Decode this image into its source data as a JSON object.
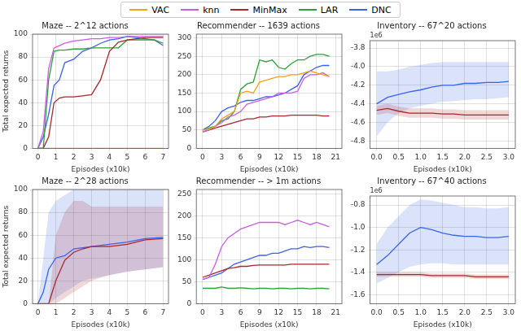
{
  "chart_data": [
    {
      "type": "line",
      "title": "Maze -- 2^12 actions",
      "xlabel": "Episodes (x10k)",
      "ylabel": "Total expected returns",
      "x": [
        0,
        0.3,
        0.6,
        0.9,
        1.2,
        1.5,
        2,
        2.5,
        3,
        3.5,
        4,
        4.5,
        5,
        5.5,
        6,
        6.5,
        7
      ],
      "xlim": [
        -0.3,
        7.3
      ],
      "xticks": [
        0,
        1,
        2,
        3,
        4,
        5,
        6,
        7
      ],
      "ylim": [
        0,
        100
      ],
      "yticks": [
        0,
        20,
        40,
        60,
        80,
        100
      ],
      "grid": true,
      "legend": "top",
      "series": [
        {
          "name": "VAC",
          "color": "#f5a01a",
          "values": [
            0,
            0,
            0,
            0,
            0,
            0,
            0,
            0,
            0,
            0,
            0,
            0,
            0,
            0,
            0,
            0,
            0
          ]
        },
        {
          "name": "knn",
          "color": "#c65ee0",
          "values": [
            0,
            15,
            70,
            88,
            90,
            92,
            94,
            95,
            96,
            96,
            97,
            97,
            98,
            98,
            98,
            98,
            98
          ]
        },
        {
          "name": "MinMax",
          "color": "#a8262a",
          "values": [
            0,
            0,
            10,
            40,
            44,
            45,
            45,
            46,
            47,
            60,
            85,
            93,
            95,
            96,
            97,
            97,
            97
          ]
        },
        {
          "name": "LAR",
          "color": "#2e9e3a",
          "values": [
            0,
            0,
            60,
            85,
            86,
            86,
            87,
            87,
            88,
            88,
            88,
            88,
            95,
            95,
            95,
            95,
            92
          ]
        },
        {
          "name": "DNC",
          "color": "#3a62e8",
          "values": [
            0,
            10,
            30,
            55,
            60,
            75,
            78,
            85,
            88,
            92,
            95,
            96,
            98,
            97,
            96,
            95,
            90
          ]
        }
      ]
    },
    {
      "type": "line",
      "title": "Recommender -- 1639 actions",
      "xlabel": "Episodes (x10k)",
      "x": [
        0,
        1,
        2,
        3,
        4,
        5,
        6,
        7,
        8,
        9,
        10,
        11,
        12,
        13,
        14,
        15,
        16,
        17,
        18,
        19,
        20
      ],
      "xlim": [
        -1,
        22
      ],
      "xticks": [
        0,
        3,
        6,
        9,
        12,
        15,
        18,
        21
      ],
      "ylim": [
        0,
        310
      ],
      "yticks": [
        0,
        50,
        100,
        150,
        200,
        250,
        300
      ],
      "grid": true,
      "legend": "top",
      "series": [
        {
          "name": "VAC",
          "color": "#f5a01a",
          "values": [
            50,
            52,
            60,
            80,
            90,
            100,
            150,
            155,
            150,
            180,
            185,
            190,
            195,
            195,
            200,
            200,
            205,
            210,
            205,
            200,
            195
          ]
        },
        {
          "name": "knn",
          "color": "#c65ee0",
          "values": [
            45,
            50,
            60,
            70,
            85,
            90,
            100,
            120,
            125,
            130,
            135,
            140,
            150,
            150,
            150,
            155,
            190,
            200,
            200,
            205,
            195
          ]
        },
        {
          "name": "MinMax",
          "color": "#a8262a",
          "values": [
            45,
            50,
            55,
            60,
            65,
            70,
            75,
            80,
            80,
            85,
            85,
            88,
            88,
            88,
            90,
            90,
            90,
            90,
            90,
            88,
            88
          ]
        },
        {
          "name": "LAR",
          "color": "#2e9e3a",
          "values": [
            50,
            55,
            60,
            75,
            80,
            100,
            160,
            175,
            180,
            240,
            235,
            240,
            220,
            215,
            230,
            240,
            240,
            250,
            255,
            255,
            250
          ]
        },
        {
          "name": "DNC",
          "color": "#3a62e8",
          "values": [
            50,
            60,
            75,
            100,
            110,
            115,
            125,
            130,
            130,
            135,
            140,
            140,
            145,
            150,
            160,
            170,
            200,
            210,
            220,
            225,
            225
          ]
        }
      ]
    },
    {
      "type": "line",
      "title": "Inventory -- 67^20 actions",
      "xlabel": "Episodes (x10k)",
      "annotation": "1e6",
      "x": [
        0,
        0.25,
        0.5,
        0.75,
        1,
        1.25,
        1.5,
        1.75,
        2,
        2.25,
        2.5,
        2.75,
        3
      ],
      "xlim": [
        -0.15,
        3.15
      ],
      "xticks": [
        {
          "value": 0,
          "label": "0.0"
        },
        {
          "value": 0.5,
          "label": "0.5"
        },
        {
          "value": 1,
          "label": "1.0"
        },
        {
          "value": 1.5,
          "label": "1.5"
        },
        {
          "value": 2,
          "label": "2.0"
        },
        {
          "value": 2.5,
          "label": "2.5"
        },
        {
          "value": 3,
          "label": "3.0"
        }
      ],
      "ylim": [
        -4.88,
        -3.72
      ],
      "yticks": [
        -4.8,
        -4.6,
        -4.4,
        -4.2,
        {
          "value": -4,
          "label": "-4.0"
        },
        -3.8
      ],
      "grid": true,
      "legend": "top",
      "series": [
        {
          "name": "MinMax",
          "color": "#a8262a",
          "values": [
            -4.47,
            -4.45,
            -4.48,
            -4.5,
            -4.5,
            -4.5,
            -4.51,
            -4.51,
            -4.52,
            -4.52,
            -4.52,
            -4.52,
            -4.52
          ],
          "lower": [
            -4.52,
            -4.5,
            -4.53,
            -4.55,
            -4.55,
            -4.55,
            -4.56,
            -4.56,
            -4.57,
            -4.57,
            -4.57,
            -4.57,
            -4.57
          ],
          "upper": [
            -4.42,
            -4.4,
            -4.43,
            -4.45,
            -4.45,
            -4.45,
            -4.46,
            -4.46,
            -4.47,
            -4.47,
            -4.47,
            -4.47,
            -4.47
          ]
        },
        {
          "name": "DNC",
          "color": "#3a62e8",
          "values": [
            -4.4,
            -4.33,
            -4.3,
            -4.27,
            -4.25,
            -4.22,
            -4.2,
            -4.2,
            -4.18,
            -4.18,
            -4.17,
            -4.17,
            -4.16
          ],
          "lower": [
            -4.75,
            -4.6,
            -4.5,
            -4.45,
            -4.42,
            -4.4,
            -4.38,
            -4.37,
            -4.36,
            -4.35,
            -4.35,
            -4.34,
            -4.33
          ],
          "upper": [
            -4.05,
            -4.05,
            -4.03,
            -4.0,
            -3.98,
            -3.96,
            -3.95,
            -3.95,
            -3.95,
            -3.95,
            -3.95,
            -3.95,
            -3.95
          ]
        }
      ]
    },
    {
      "type": "line",
      "title": "Maze -- 2^28 actions",
      "xlabel": "Episodes (x10k)",
      "ylabel": "Total expected returns",
      "x": [
        0,
        0.3,
        0.6,
        1,
        1.5,
        2,
        2.5,
        3,
        4,
        5,
        6,
        7
      ],
      "xlim": [
        -0.3,
        7.3
      ],
      "xticks": [
        0,
        1,
        2,
        3,
        4,
        5,
        6,
        7
      ],
      "ylim": [
        0,
        100
      ],
      "yticks": [
        0,
        20,
        40,
        60,
        80,
        100
      ],
      "grid": true,
      "legend": "top",
      "series": [
        {
          "name": "MinMax",
          "color": "#a8262a",
          "values": [
            0,
            0,
            0,
            20,
            38,
            45,
            48,
            50,
            50,
            52,
            56,
            57
          ],
          "lower": [
            0,
            0,
            0,
            0,
            5,
            10,
            15,
            20,
            25,
            28,
            30,
            32
          ],
          "upper": [
            0,
            0,
            0,
            60,
            80,
            90,
            90,
            85,
            85,
            85,
            85,
            85
          ]
        },
        {
          "name": "DNC",
          "color": "#3a62e8",
          "values": [
            0,
            10,
            30,
            40,
            42,
            48,
            49,
            50,
            52,
            54,
            57,
            58
          ],
          "lower": [
            0,
            0,
            0,
            5,
            10,
            15,
            20,
            22,
            25,
            28,
            30,
            32
          ],
          "upper": [
            0,
            40,
            80,
            90,
            95,
            100,
            100,
            100,
            100,
            100,
            100,
            100
          ]
        }
      ]
    },
    {
      "type": "line",
      "title": "Recommender -- > 1m actions",
      "xlabel": "Episodes (x10k)",
      "x": [
        0,
        1,
        2,
        3,
        4,
        5,
        6,
        7,
        8,
        9,
        10,
        11,
        12,
        13,
        14,
        15,
        16,
        17,
        18,
        19,
        20
      ],
      "xlim": [
        -1,
        22
      ],
      "xticks": [
        0,
        3,
        6,
        9,
        12,
        15,
        18,
        21
      ],
      "ylim": [
        0,
        260
      ],
      "yticks": [
        0,
        50,
        100,
        150,
        200,
        250
      ],
      "grid": true,
      "legend": "top",
      "series": [
        {
          "name": "knn",
          "color": "#c65ee0",
          "values": [
            55,
            60,
            90,
            130,
            150,
            160,
            170,
            175,
            180,
            185,
            185,
            185,
            185,
            180,
            185,
            190,
            185,
            180,
            185,
            180,
            175
          ]
        },
        {
          "name": "MinMax",
          "color": "#a8262a",
          "values": [
            60,
            65,
            70,
            75,
            80,
            82,
            85,
            85,
            87,
            88,
            88,
            88,
            88,
            88,
            90,
            90,
            90,
            90,
            90,
            90,
            90
          ]
        },
        {
          "name": "LAR",
          "color": "#2e9e3a",
          "values": [
            35,
            35,
            35,
            38,
            35,
            35,
            36,
            35,
            34,
            35,
            35,
            34,
            35,
            35,
            34,
            35,
            35,
            34,
            35,
            35,
            34
          ]
        },
        {
          "name": "DNC",
          "color": "#3a62e8",
          "values": [
            55,
            60,
            65,
            70,
            80,
            90,
            95,
            100,
            105,
            110,
            110,
            115,
            115,
            120,
            125,
            125,
            130,
            128,
            130,
            130,
            128
          ]
        }
      ]
    },
    {
      "type": "line",
      "title": "Inventory -- 67^40 actions",
      "xlabel": "Episodes (x10k)",
      "annotation": "1e6",
      "x": [
        0,
        0.25,
        0.5,
        0.75,
        1,
        1.25,
        1.5,
        1.75,
        2,
        2.25,
        2.5,
        2.75,
        3
      ],
      "xlim": [
        -0.15,
        3.15
      ],
      "xticks": [
        {
          "value": 0,
          "label": "0.0"
        },
        {
          "value": 0.5,
          "label": "0.5"
        },
        {
          "value": 1,
          "label": "1.0"
        },
        {
          "value": 1.5,
          "label": "1.5"
        },
        {
          "value": 2,
          "label": "2.0"
        },
        {
          "value": 2.5,
          "label": "2.5"
        },
        {
          "value": 3,
          "label": "3.0"
        }
      ],
      "ylim": [
        -1.68,
        -0.72
      ],
      "yticks": [
        -1.6,
        -1.4,
        -1.2,
        {
          "value": -1,
          "label": "-1.0"
        },
        -0.8
      ],
      "grid": true,
      "legend": "top",
      "series": [
        {
          "name": "MinMax",
          "color": "#a8262a",
          "values": [
            -1.42,
            -1.42,
            -1.42,
            -1.42,
            -1.42,
            -1.43,
            -1.43,
            -1.43,
            -1.43,
            -1.44,
            -1.44,
            -1.44,
            -1.44
          ],
          "lower": [
            -1.44,
            -1.44,
            -1.44,
            -1.44,
            -1.44,
            -1.45,
            -1.45,
            -1.45,
            -1.45,
            -1.46,
            -1.46,
            -1.46,
            -1.46
          ],
          "upper": [
            -1.4,
            -1.4,
            -1.4,
            -1.4,
            -1.4,
            -1.41,
            -1.41,
            -1.41,
            -1.41,
            -1.42,
            -1.42,
            -1.42,
            -1.42
          ]
        },
        {
          "name": "DNC",
          "color": "#3a62e8",
          "values": [
            -1.33,
            -1.25,
            -1.15,
            -1.05,
            -1.0,
            -1.02,
            -1.05,
            -1.07,
            -1.08,
            -1.08,
            -1.09,
            -1.09,
            -1.08
          ],
          "lower": [
            -1.5,
            -1.45,
            -1.4,
            -1.35,
            -1.33,
            -1.32,
            -1.32,
            -1.33,
            -1.33,
            -1.33,
            -1.33,
            -1.33,
            -1.33
          ],
          "upper": [
            -1.15,
            -1.0,
            -0.9,
            -0.8,
            -0.75,
            -0.76,
            -0.78,
            -0.8,
            -0.82,
            -0.82,
            -0.83,
            -0.83,
            -0.82
          ]
        }
      ]
    }
  ]
}
